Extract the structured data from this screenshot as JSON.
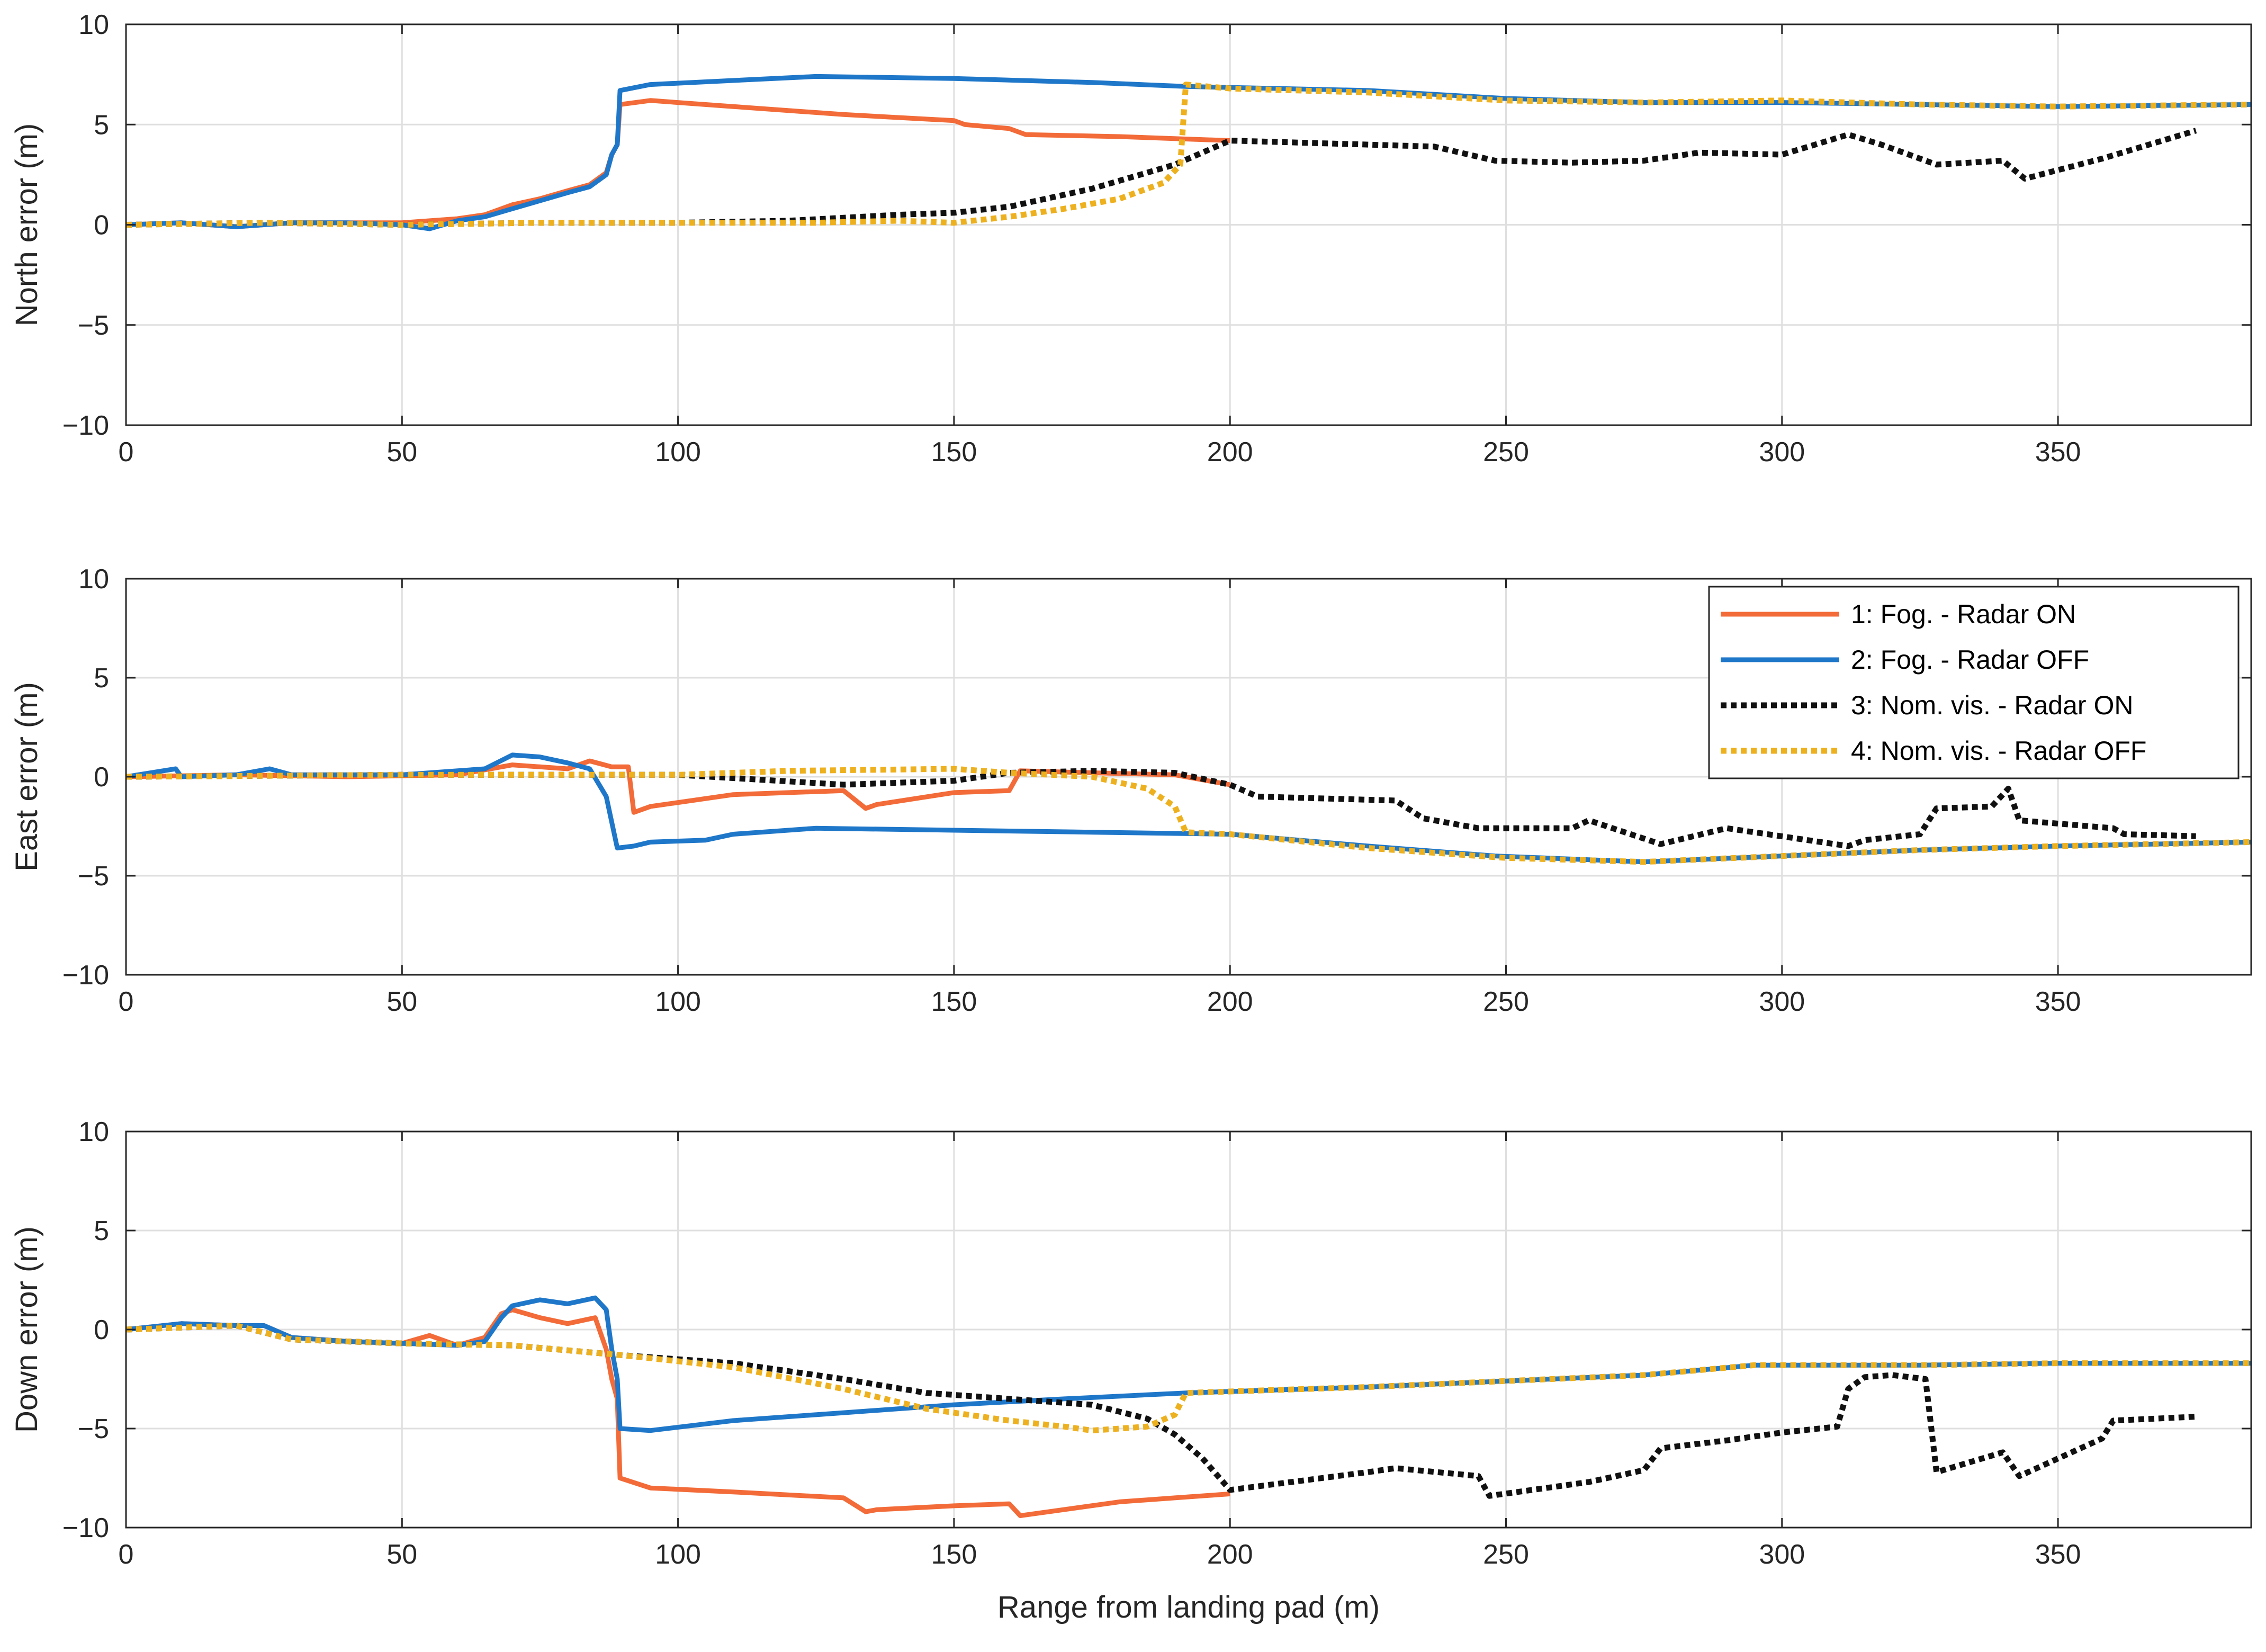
{
  "figure": {
    "xlabel": "Range from landing pad (m)",
    "xlim": [
      0,
      385
    ],
    "xticks": [
      0,
      50,
      100,
      150,
      200,
      250,
      300,
      350
    ],
    "yticks": [
      -10,
      -5,
      0,
      5,
      10
    ]
  },
  "legend": {
    "entries": [
      "1: Fog. - Radar ON",
      "2: Fog. - Radar OFF",
      "3: Nom. vis. - Radar ON",
      "4: Nom. vis. - Radar OFF"
    ]
  },
  "series_styles": [
    {
      "name": "1: Fog. - Radar ON",
      "color": "#f26b38",
      "dash": "solid"
    },
    {
      "name": "2: Fog. - Radar OFF",
      "color": "#1f77c9",
      "dash": "solid"
    },
    {
      "name": "3: Nom. vis. - Radar ON",
      "color": "#111111",
      "dash": "dotted"
    },
    {
      "name": "4: Nom. vis. - Radar OFF",
      "color": "#edb120",
      "dash": "dotted"
    }
  ],
  "chart_data": [
    {
      "type": "line",
      "title": "",
      "xlabel": "",
      "ylabel": "North error (m)",
      "xlim": [
        0,
        385
      ],
      "ylim": [
        -10,
        10
      ],
      "grid": true,
      "series": [
        {
          "name": "1: Fog. - Radar ON",
          "x": [
            0,
            10,
            20,
            30,
            40,
            50,
            60,
            65,
            70,
            75,
            80,
            84,
            87,
            88,
            89,
            89.5,
            95,
            110,
            130,
            150,
            152,
            160,
            163,
            180,
            200
          ],
          "y": [
            0,
            0.1,
            -0.1,
            0.1,
            0.1,
            0.1,
            0.3,
            0.5,
            1.0,
            1.3,
            1.7,
            2.0,
            2.6,
            3.5,
            4.0,
            6.0,
            6.2,
            5.9,
            5.5,
            5.2,
            5.0,
            4.8,
            4.5,
            4.4,
            4.2
          ]
        },
        {
          "name": "2: Fog. - Radar OFF",
          "x": [
            0,
            10,
            20,
            30,
            40,
            50,
            55,
            60,
            65,
            70,
            75,
            80,
            84,
            87,
            88,
            89,
            89.5,
            95,
            110,
            125,
            150,
            175,
            192,
            225,
            250,
            275,
            300,
            325,
            350,
            385
          ],
          "y": [
            0,
            0.1,
            -0.1,
            0.1,
            0.1,
            0.0,
            -0.2,
            0.2,
            0.4,
            0.8,
            1.2,
            1.6,
            1.9,
            2.5,
            3.5,
            4.0,
            6.7,
            7.0,
            7.2,
            7.4,
            7.3,
            7.1,
            6.9,
            6.7,
            6.3,
            6.1,
            6.1,
            6.0,
            5.9,
            6.0
          ]
        },
        {
          "name": "3: Nom. vis. - Radar ON",
          "x": [
            0,
            25,
            50,
            75,
            100,
            120,
            140,
            150,
            160,
            175,
            190,
            200,
            225,
            237,
            248,
            262,
            275,
            285,
            300,
            312,
            318,
            328,
            340,
            344,
            358,
            375
          ],
          "y": [
            0,
            0.1,
            0.0,
            0.1,
            0.1,
            0.2,
            0.5,
            0.6,
            0.9,
            1.8,
            3.0,
            4.2,
            4.0,
            3.9,
            3.2,
            3.1,
            3.2,
            3.6,
            3.5,
            4.5,
            4.0,
            3.0,
            3.2,
            2.3,
            3.3,
            4.7
          ]
        },
        {
          "name": "4: Nom. vis. - Radar OFF",
          "x": [
            0,
            25,
            50,
            75,
            100,
            125,
            140,
            150,
            160,
            170,
            180,
            188,
            191,
            192,
            200,
            225,
            250,
            275,
            300,
            325,
            350,
            385
          ],
          "y": [
            0,
            0.1,
            0.0,
            0.1,
            0.1,
            0.1,
            0.2,
            0.1,
            0.4,
            0.8,
            1.3,
            2.1,
            3.0,
            7.0,
            6.8,
            6.6,
            6.2,
            6.1,
            6.2,
            6.0,
            5.9,
            6.0
          ]
        }
      ]
    },
    {
      "type": "line",
      "title": "",
      "xlabel": "",
      "ylabel": "East error (m)",
      "xlim": [
        0,
        385
      ],
      "ylim": [
        -10,
        10
      ],
      "grid": true,
      "legend": "top-right",
      "series": [
        {
          "name": "1: Fog. - Radar ON",
          "x": [
            0,
            20,
            40,
            60,
            70,
            75,
            80,
            84,
            88,
            91,
            92,
            95,
            110,
            130,
            134,
            136,
            150,
            160,
            162,
            175,
            190,
            200
          ],
          "y": [
            0,
            0.1,
            0.0,
            0.1,
            0.6,
            0.5,
            0.4,
            0.8,
            0.5,
            0.5,
            -1.8,
            -1.5,
            -0.9,
            -0.7,
            -1.6,
            -1.4,
            -0.8,
            -0.7,
            0.3,
            0.2,
            0.1,
            -0.4
          ]
        },
        {
          "name": "2: Fog. - Radar OFF",
          "x": [
            0,
            9,
            10,
            20,
            26,
            30,
            50,
            65,
            70,
            75,
            80,
            84,
            87,
            89,
            92,
            95,
            105,
            110,
            125,
            150,
            175,
            200,
            225,
            248,
            275,
            300,
            325,
            350,
            385
          ],
          "y": [
            0,
            0.4,
            0,
            0.1,
            0.4,
            0.1,
            0.1,
            0.4,
            1.1,
            1.0,
            0.7,
            0.4,
            -1.0,
            -3.6,
            -3.5,
            -3.3,
            -3.2,
            -2.9,
            -2.6,
            -2.7,
            -2.8,
            -2.9,
            -3.5,
            -4.0,
            -4.3,
            -4.0,
            -3.7,
            -3.5,
            -3.3
          ]
        },
        {
          "name": "3: Nom. vis. - Radar ON",
          "x": [
            0,
            50,
            100,
            130,
            150,
            160,
            175,
            190,
            200,
            205,
            230,
            235,
            245,
            262,
            265,
            278,
            290,
            312,
            315,
            325,
            328,
            338,
            341,
            343,
            360,
            362,
            375
          ],
          "y": [
            0,
            0.1,
            0.1,
            -0.4,
            -0.2,
            0.2,
            0.3,
            0.2,
            -0.4,
            -1.0,
            -1.2,
            -2.1,
            -2.6,
            -2.6,
            -2.2,
            -3.4,
            -2.6,
            -3.5,
            -3.2,
            -2.9,
            -1.6,
            -1.5,
            -0.6,
            -2.2,
            -2.6,
            -2.9,
            -3.0
          ]
        },
        {
          "name": "4: Nom. vis. - Radar OFF",
          "x": [
            0,
            50,
            100,
            120,
            150,
            160,
            175,
            185,
            190,
            192,
            200,
            225,
            250,
            275,
            300,
            325,
            350,
            385
          ],
          "y": [
            0,
            0.1,
            0.1,
            0.3,
            0.4,
            0.2,
            0.0,
            -0.6,
            -1.5,
            -2.8,
            -2.9,
            -3.6,
            -4.1,
            -4.3,
            -4.0,
            -3.7,
            -3.5,
            -3.3
          ]
        }
      ]
    },
    {
      "type": "line",
      "title": "",
      "xlabel": "Range from landing pad (m)",
      "ylabel": "Down error (m)",
      "xlim": [
        0,
        385
      ],
      "ylim": [
        -10,
        10
      ],
      "grid": true,
      "series": [
        {
          "name": "1: Fog. - Radar ON",
          "x": [
            0,
            10,
            20,
            25,
            30,
            40,
            50,
            55,
            60,
            65,
            68,
            70,
            75,
            80,
            85,
            87,
            88,
            89,
            89.5,
            95,
            110,
            130,
            134,
            136,
            150,
            160,
            162,
            180,
            190,
            200
          ],
          "y": [
            0,
            0.3,
            0.2,
            0.2,
            -0.4,
            -0.6,
            -0.7,
            -0.3,
            -0.8,
            -0.4,
            0.8,
            1.0,
            0.6,
            0.3,
            0.6,
            -1.0,
            -2.5,
            -3.5,
            -7.5,
            -8.0,
            -8.2,
            -8.5,
            -9.2,
            -9.1,
            -8.9,
            -8.8,
            -9.4,
            -8.7,
            -8.5,
            -8.3
          ]
        },
        {
          "name": "2: Fog. - Radar OFF",
          "x": [
            0,
            10,
            20,
            25,
            30,
            40,
            50,
            60,
            65,
            68,
            70,
            75,
            80,
            85,
            87,
            88,
            89,
            89.5,
            95,
            110,
            130,
            150,
            170,
            192,
            225,
            250,
            275,
            295,
            325,
            350,
            385
          ],
          "y": [
            0,
            0.3,
            0.2,
            0.2,
            -0.4,
            -0.6,
            -0.7,
            -0.8,
            -0.6,
            0.6,
            1.2,
            1.5,
            1.3,
            1.6,
            1.0,
            -1.0,
            -2.5,
            -5.0,
            -5.1,
            -4.6,
            -4.2,
            -3.8,
            -3.5,
            -3.2,
            -2.9,
            -2.6,
            -2.3,
            -1.8,
            -1.8,
            -1.7,
            -1.7
          ]
        },
        {
          "name": "3: Nom. vis. - Radar ON",
          "x": [
            0,
            20,
            30,
            50,
            70,
            90,
            110,
            130,
            145,
            160,
            175,
            185,
            190,
            195,
            200,
            225,
            230,
            245,
            247,
            265,
            275,
            278,
            290,
            300,
            310,
            312,
            315,
            320,
            326,
            328,
            340,
            343,
            358,
            360,
            375
          ],
          "y": [
            0,
            0.2,
            -0.5,
            -0.7,
            -0.8,
            -1.3,
            -1.7,
            -2.5,
            -3.2,
            -3.5,
            -3.8,
            -4.5,
            -5.3,
            -6.5,
            -8.1,
            -7.2,
            -7.0,
            -7.4,
            -8.4,
            -7.7,
            -7.1,
            -6.0,
            -5.6,
            -5.2,
            -4.9,
            -3.0,
            -2.4,
            -2.3,
            -2.5,
            -7.2,
            -6.2,
            -7.4,
            -5.5,
            -4.6,
            -4.4
          ]
        },
        {
          "name": "4: Nom. vis. - Radar OFF",
          "x": [
            0,
            20,
            30,
            50,
            70,
            90,
            110,
            130,
            145,
            160,
            170,
            175,
            185,
            190,
            192,
            225,
            250,
            275,
            295,
            325,
            350,
            385
          ],
          "y": [
            0,
            0.2,
            -0.5,
            -0.7,
            -0.8,
            -1.3,
            -1.9,
            -3.0,
            -4.0,
            -4.6,
            -4.9,
            -5.1,
            -4.9,
            -4.3,
            -3.2,
            -2.9,
            -2.6,
            -2.3,
            -1.8,
            -1.8,
            -1.7,
            -1.7
          ]
        }
      ]
    }
  ]
}
